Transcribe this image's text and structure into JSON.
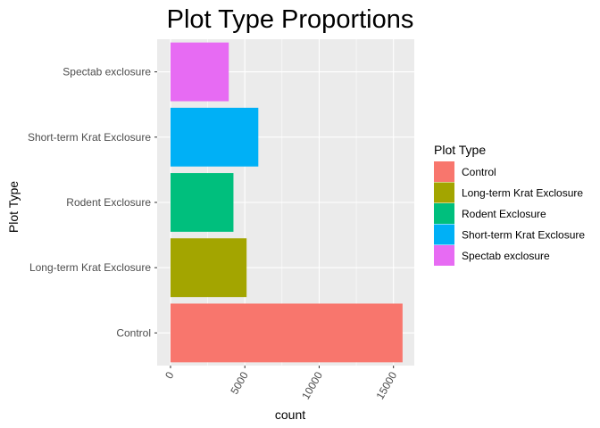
{
  "chart_data": {
    "type": "bar",
    "orientation": "horizontal",
    "title": "Plot Type Proportions",
    "xlabel": "count",
    "ylabel": "Plot Type",
    "categories": [
      "Control",
      "Long-term Krat Exclosure",
      "Rodent Exclosure",
      "Short-term Krat Exclosure",
      "Spectab exclosure"
    ],
    "values": [
      15611,
      5118,
      4233,
      5906,
      3918
    ],
    "colors": [
      "#F8766D",
      "#A3A500",
      "#00BF7D",
      "#00B0F6",
      "#E76BF3"
    ],
    "xlim": [
      -900,
      16400
    ],
    "x_ticks": [
      0,
      5000,
      10000,
      15000
    ],
    "x_tick_labels": [
      "0",
      "5000",
      "10000",
      "15000"
    ],
    "x_tick_rotation": -60,
    "grid": true,
    "legend": {
      "title": "Plot Type",
      "position": "right",
      "entries": [
        "Control",
        "Long-term Krat Exclosure",
        "Rodent Exclosure",
        "Short-term Krat Exclosure",
        "Spectab exclosure"
      ]
    }
  }
}
